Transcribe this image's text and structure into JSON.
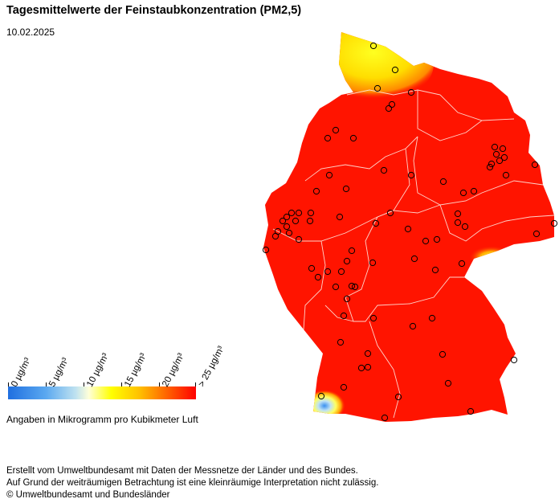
{
  "header": {
    "title": "Tagesmittelwerte der Feinstaubkonzentration (PM2,5)",
    "date": "10.02.2025"
  },
  "legend": {
    "ticks": [
      "0 µg/m³",
      "5 µg/m³",
      "10 µg/m³",
      "15 µg/m³",
      "20 µg/m³",
      "> 25 µg/m³"
    ],
    "note": "Angaben in Mikrogramm pro Kubikmeter Luft",
    "colors": {
      "low": "#1f6fe0",
      "mid": "#ffff00",
      "high": "#ff0000"
    }
  },
  "footer": {
    "line1": "Erstellt vom Umweltbundesamt mit Daten der Messnetze der Länder und des Bundes.",
    "line2": "Auf Grund der weiträumigen Betrachtung ist eine kleinräumige Interpretation nicht zulässig.",
    "line3": "© Umweltbundesamt und Bundesländer"
  },
  "map": {
    "fill_color": "#ff1400",
    "regions_low": [
      "Schleswig-Holstein north coast (yellow)",
      "Saxony south-east border (yellow)",
      "Lake Constance area (blue)"
    ]
  }
}
